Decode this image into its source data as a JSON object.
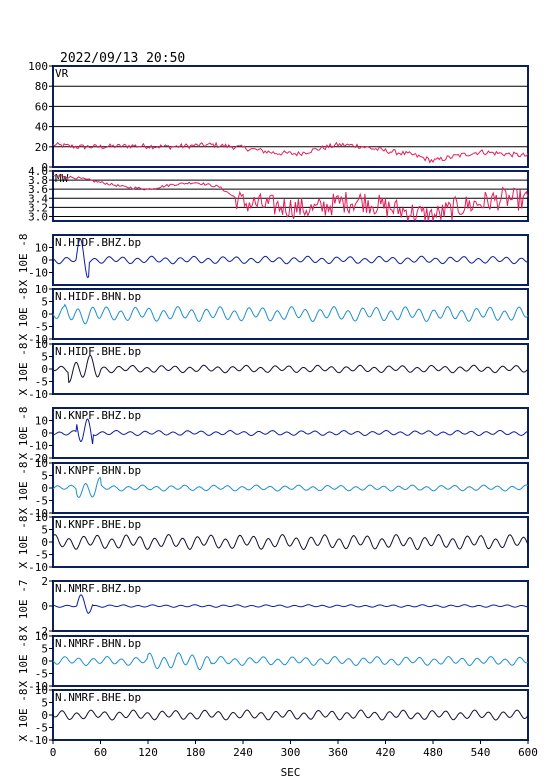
{
  "header": {
    "datetime": "2022/09/13 20:50"
  },
  "chart_data": [
    {
      "type": "line",
      "label": "VR",
      "ylim": [
        0,
        100
      ],
      "yticks": [
        "100",
        "80",
        "60",
        "40",
        "20",
        "0"
      ],
      "grid": true,
      "color": "#e0205a",
      "x": [
        0,
        30,
        60,
        100,
        150,
        200,
        240,
        280,
        310,
        330,
        360,
        385,
        420,
        455,
        480,
        510,
        540,
        570,
        600
      ],
      "values": [
        22,
        20,
        20,
        21,
        20,
        22,
        19,
        14,
        13,
        17,
        22,
        21,
        16,
        12,
        6,
        11,
        15,
        13,
        11
      ]
    },
    {
      "type": "line",
      "label": "MW",
      "ylim": [
        2.9,
        4.0
      ],
      "yticks": [
        "4.0",
        "3.8",
        "3.6",
        "3.4",
        "3.2",
        "3.0"
      ],
      "grid": true,
      "color": "#e0205a",
      "x": [
        0,
        30,
        60,
        90,
        120,
        150,
        180,
        210,
        240,
        270,
        300,
        330,
        360,
        390,
        420,
        450,
        480,
        510,
        540,
        570,
        600
      ],
      "values": [
        3.9,
        3.85,
        3.75,
        3.65,
        3.6,
        3.7,
        3.75,
        3.65,
        3.3,
        3.25,
        3.2,
        3.15,
        3.3,
        3.35,
        3.2,
        3.1,
        3.0,
        3.2,
        3.3,
        3.4,
        3.35
      ]
    },
    {
      "type": "line",
      "label": "N.HIDF.BHZ.bp",
      "ylabel": "X 10E -8",
      "ylim": [
        -20,
        20
      ],
      "yticks": [
        "10",
        "0",
        "-10"
      ],
      "color": "#0b1ea0",
      "burst": [
        30,
        45
      ],
      "burst_amp": 0.9,
      "amp": 0.15
    },
    {
      "type": "line",
      "label": "N.HIDF.BHN.bp",
      "ylabel": "X 10E -8",
      "ylim": [
        -10,
        10
      ],
      "yticks": [
        "10",
        "5",
        "0",
        "-5",
        "-10"
      ],
      "color": "#1e8fd0",
      "burst": [
        15,
        60
      ],
      "burst_amp": 0.4,
      "amp": 0.3
    },
    {
      "type": "line",
      "label": "N.HIDF.BHE.bp",
      "ylabel": "X 10E -8",
      "ylim": [
        -10,
        10
      ],
      "yticks": [
        "10",
        "5",
        "0",
        "-5",
        "-10"
      ],
      "color": "#101030",
      "burst": [
        20,
        60
      ],
      "burst_amp": 0.55,
      "amp": 0.15
    },
    {
      "type": "line",
      "label": "N.KNPF.BHZ.bp",
      "ylabel": "X 10E -8",
      "ylim": [
        -20,
        20
      ],
      "yticks": [
        "10",
        "0",
        "-10",
        "-20"
      ],
      "color": "#0b1ea0",
      "burst": [
        30,
        50
      ],
      "burst_amp": 0.8,
      "amp": 0.1
    },
    {
      "type": "line",
      "label": "N.KNPF.BHN.bp",
      "ylabel": "X 10E -8",
      "ylim": [
        -10,
        10
      ],
      "yticks": [
        "10",
        "5",
        "0",
        "-5",
        "-10"
      ],
      "color": "#1e8fd0",
      "burst": [
        30,
        60
      ],
      "burst_amp": 0.45,
      "amp": 0.12
    },
    {
      "type": "line",
      "label": "N.KNPF.BHE.bp",
      "ylabel": "X 10E -8",
      "ylim": [
        -10,
        10
      ],
      "yticks": [
        "10",
        "5",
        "0",
        "-5",
        "-10"
      ],
      "color": "#101030",
      "burst": [
        0,
        600
      ],
      "burst_amp": 0.3,
      "amp": 0.3
    },
    {
      "type": "line",
      "label": "N.NMRF.BHZ.bp",
      "ylabel": "X 10E -7",
      "ylim": [
        -2,
        2
      ],
      "yticks": [
        "2",
        "0",
        "-2"
      ],
      "color": "#0b1ea0",
      "burst": [
        30,
        50
      ],
      "burst_amp": 0.45,
      "amp": 0.05
    },
    {
      "type": "line",
      "label": "N.NMRF.BHN.bp",
      "ylabel": "X 10E -8",
      "ylim": [
        -10,
        10
      ],
      "yticks": [
        "10",
        "5",
        "0",
        "-5",
        "-10"
      ],
      "color": "#1e8fd0",
      "burst": [
        120,
        200
      ],
      "burst_amp": 0.35,
      "amp": 0.18
    },
    {
      "type": "line",
      "label": "N.NMRF.BHE.bp",
      "ylabel": "X 10E -8",
      "ylim": [
        -10,
        10
      ],
      "yticks": [
        "10",
        "5",
        "0",
        "-5",
        "-10"
      ],
      "color": "#101030",
      "burst": [
        0,
        600
      ],
      "burst_amp": 0.2,
      "amp": 0.25
    }
  ],
  "x_axis": {
    "label": "SEC",
    "ticks": [
      0,
      60,
      120,
      180,
      240,
      300,
      360,
      420,
      480,
      540,
      600
    ],
    "xlim": [
      0,
      600
    ]
  }
}
